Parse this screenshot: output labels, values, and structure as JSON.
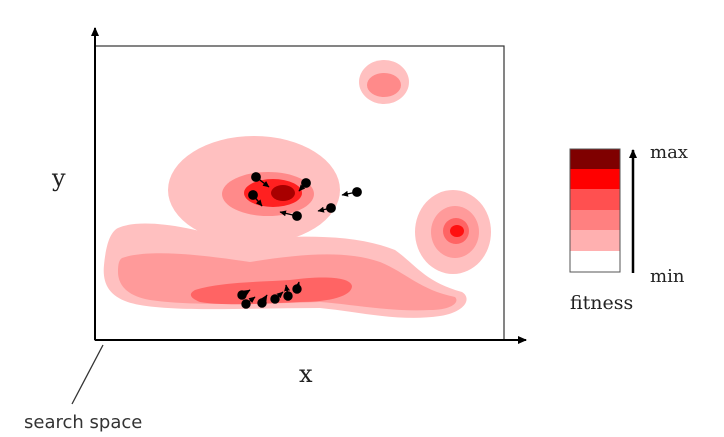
{
  "axes": {
    "x_label": "x",
    "y_label": "y",
    "search_space_label": "search space"
  },
  "legend": {
    "max_label": "max",
    "min_label": "min",
    "title": "fitness",
    "levels": [
      "#7f0000",
      "#ff0000",
      "#ff5050",
      "#ff8080",
      "#ffb0b0",
      "#ffffff"
    ]
  },
  "colors": {
    "axis": "#000000",
    "frame": "#333333",
    "particle": "#000000",
    "contour_light": "#ffc0c0",
    "contour_mid": "#ff8a8a",
    "contour_strong": "#ff5a5a",
    "contour_peak": "#ff1010",
    "contour_max": "#b00000"
  }
}
